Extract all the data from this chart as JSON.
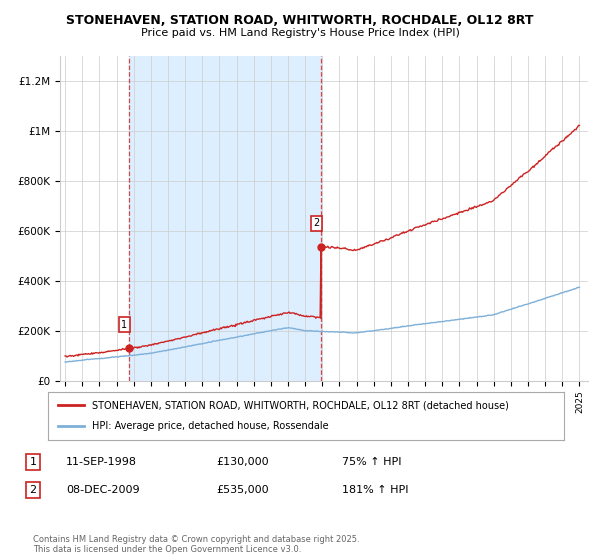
{
  "title": "STONEHAVEN, STATION ROAD, WHITWORTH, ROCHDALE, OL12 8RT",
  "subtitle": "Price paid vs. HM Land Registry's House Price Index (HPI)",
  "ylim": [
    0,
    1300000
  ],
  "yticks": [
    0,
    200000,
    400000,
    600000,
    800000,
    1000000,
    1200000
  ],
  "ytick_labels": [
    "£0",
    "£200K",
    "£400K",
    "£600K",
    "£800K",
    "£1M",
    "£1.2M"
  ],
  "xstart": 1995,
  "xend": 2025,
  "legend_line1": "STONEHAVEN, STATION ROAD, WHITWORTH, ROCHDALE, OL12 8RT (detached house)",
  "legend_line2": "HPI: Average price, detached house, Rossendale",
  "sale1_label": "1",
  "sale1_date": "11-SEP-1998",
  "sale1_price": "£130,000",
  "sale1_hpi": "75% ↑ HPI",
  "sale1_year": 1998.75,
  "sale1_value": 130000,
  "sale2_label": "2",
  "sale2_date": "08-DEC-2009",
  "sale2_price": "£535,000",
  "sale2_hpi": "181% ↑ HPI",
  "sale2_year": 2009.95,
  "sale2_value": 535000,
  "red_color": "#cc2222",
  "blue_color": "#7fb0d8",
  "shade_color": "#ddeeff",
  "bg_color": "#ffffff",
  "grid_color": "#cccccc",
  "footer": "Contains HM Land Registry data © Crown copyright and database right 2025.\nThis data is licensed under the Open Government Licence v3.0."
}
